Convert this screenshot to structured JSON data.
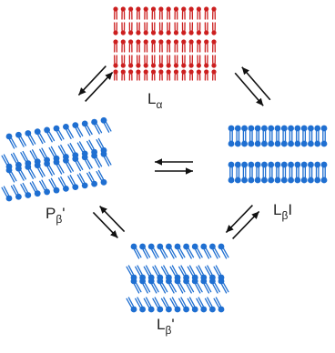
{
  "phases": {
    "la": {
      "main": "L",
      "sub": "α",
      "suffix": ""
    },
    "lbi": {
      "main": "L",
      "sub": "β",
      "suffix": "I"
    },
    "pb": {
      "main": "P",
      "sub": "β",
      "suffix": "'"
    },
    "lb": {
      "main": "L",
      "sub": "β",
      "suffix": "'"
    }
  },
  "colors": {
    "fluid": "#cc1f1f",
    "gel": "#1f6fd1",
    "arrow": "#111111"
  }
}
